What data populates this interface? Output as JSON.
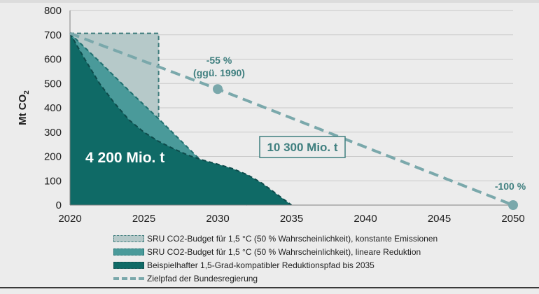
{
  "chart_data": {
    "type": "area",
    "ylabel": "Mt CO2",
    "xlim": [
      2020,
      2050
    ],
    "ylim": [
      0,
      800
    ],
    "xticks": [
      2020,
      2025,
      2030,
      2035,
      2040,
      2045,
      2050
    ],
    "yticks": [
      0,
      100,
      200,
      300,
      400,
      500,
      600,
      700,
      800
    ],
    "grid": "horizontal",
    "legend_position": "bottom",
    "series": [
      {
        "name": "SRU CO2-Budget für 1,5 °C (50 % Wahrscheinlichkeit), konstante Emissionen",
        "kind": "area",
        "color": "#b6c9c9",
        "x": [
          2020,
          2026
        ],
        "y": [
          706,
          706
        ]
      },
      {
        "name": "SRU CO2-Budget für 1,5 °C (50 % Wahrscheinlichkeit), lineare Reduktion",
        "kind": "area",
        "color": "#4a9a9a",
        "x": [
          2020,
          2022,
          2024,
          2026,
          2028,
          2030,
          2032
        ],
        "y": [
          706,
          590,
          470,
          355,
          235,
          115,
          0
        ]
      },
      {
        "name": "Beispielhafter 1,5-Grad-kompatibler Reduktionspfad bis 2035",
        "kind": "area",
        "color": "#0f6a66",
        "x": [
          2020,
          2021,
          2022,
          2023,
          2024,
          2025,
          2026,
          2027,
          2028,
          2029,
          2030,
          2031,
          2032,
          2033,
          2034,
          2035
        ],
        "y": [
          706,
          600,
          500,
          420,
          350,
          300,
          262,
          232,
          205,
          185,
          168,
          150,
          125,
          90,
          45,
          0
        ]
      },
      {
        "name": "Zielpfad der Bundesregierung",
        "kind": "line",
        "color": "#7aa8ab",
        "x": [
          2020,
          2030,
          2050
        ],
        "y": [
          706,
          477,
          0
        ]
      }
    ],
    "markers": [
      {
        "x": 2030,
        "y": 477
      },
      {
        "x": 2050,
        "y": 0
      }
    ],
    "annotations": {
      "marker_2030_line1": "-55 %",
      "marker_2030_line2": "(ggü. 1990)",
      "marker_2050": "-100 %",
      "budget_small": "4 200 Mio. t",
      "budget_large": "10 300 Mio. t"
    }
  }
}
